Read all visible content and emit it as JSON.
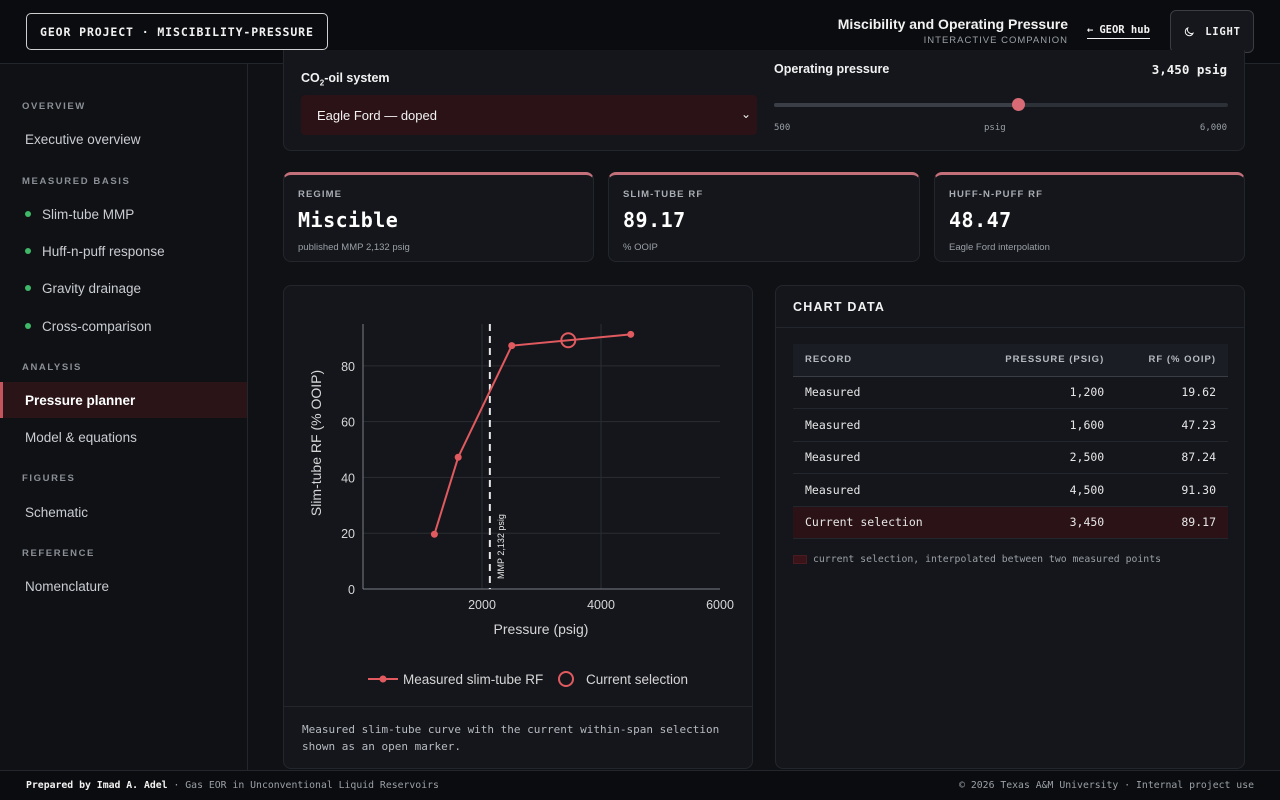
{
  "header": {
    "project_badge": "GEOR PROJECT · MISCIBILITY-PRESSURE",
    "title": "Miscibility and Operating Pressure",
    "subtitle": "INTERACTIVE COMPANION",
    "hub_link": "GEOR hub",
    "theme_toggle": "LIGHT"
  },
  "sidebar": {
    "sections": [
      {
        "title": "OVERVIEW",
        "items": [
          {
            "label": "Executive overview",
            "dot": false,
            "active": false
          }
        ]
      },
      {
        "title": "MEASURED BASIS",
        "items": [
          {
            "label": "Slim-tube MMP",
            "dot": true,
            "active": false
          },
          {
            "label": "Huff-n-puff response",
            "dot": true,
            "active": false
          },
          {
            "label": "Gravity drainage",
            "dot": true,
            "active": false
          },
          {
            "label": "Cross-comparison",
            "dot": true,
            "active": false
          }
        ]
      },
      {
        "title": "ANALYSIS",
        "items": [
          {
            "label": "Pressure planner",
            "dot": false,
            "active": true
          },
          {
            "label": "Model & equations",
            "dot": false,
            "active": false
          }
        ]
      },
      {
        "title": "FIGURES",
        "items": [
          {
            "label": "Schematic",
            "dot": false,
            "active": false
          }
        ]
      },
      {
        "title": "REFERENCE",
        "items": [
          {
            "label": "Nomenclature",
            "dot": false,
            "active": false
          }
        ]
      }
    ]
  },
  "controls": {
    "system_label_pre": "CO",
    "system_label_sub": "2",
    "system_label_post": "-oil system",
    "system_value": "Eagle Ford — doped",
    "pressure_label": "Operating pressure",
    "pressure_value": "3,450 psig",
    "pressure_current": 3450,
    "pressure_min": 500,
    "pressure_max": 6000,
    "tick_min": "500",
    "tick_unit": "psig",
    "tick_max": "6,000"
  },
  "cards": [
    {
      "label": "REGIME",
      "value": "Miscible",
      "note": "published MMP 2,132 psig"
    },
    {
      "label": "SLIM-TUBE RF",
      "value": "89.17",
      "note": "% OOIP"
    },
    {
      "label": "HUFF-N-PUFF RF",
      "value": "48.47",
      "note": "Eagle Ford interpolation"
    }
  ],
  "chart_data": {
    "type": "line",
    "title": "",
    "xlabel": "Pressure (psig)",
    "ylabel": "Slim-tube RF (% OOIP)",
    "xlim": [
      0,
      6000
    ],
    "ylim": [
      0,
      95
    ],
    "xticks": [
      2000,
      4000,
      6000
    ],
    "yticks": [
      0,
      20,
      40,
      60,
      80
    ],
    "grid": true,
    "legend_position": "bottom",
    "series": [
      {
        "name": "Measured slim-tube RF",
        "color": "#e05a5f",
        "x": [
          1200,
          1600,
          2500,
          4500
        ],
        "y": [
          19.62,
          47.23,
          87.24,
          91.3
        ]
      },
      {
        "name": "Current selection",
        "color": "#e05a5f",
        "x": [
          3450
        ],
        "y": [
          89.17
        ],
        "marker": "open-circle"
      }
    ],
    "annotations": [
      {
        "x": 2132,
        "text": "MMP 2,132 psig",
        "style": "dashed-vertical"
      }
    ],
    "caption": "Measured slim-tube curve with the current within-span selection shown as an open marker."
  },
  "data_table": {
    "title": "CHART DATA",
    "headers": [
      "RECORD",
      "PRESSURE (PSIG)",
      "RF (% OOIP)"
    ],
    "rows": [
      [
        "Measured",
        "1,200",
        "19.62"
      ],
      [
        "Measured",
        "1,600",
        "47.23"
      ],
      [
        "Measured",
        "2,500",
        "87.24"
      ],
      [
        "Measured",
        "4,500",
        "91.30"
      ],
      [
        "Current selection",
        "3,450",
        "89.17"
      ]
    ],
    "selected_row": 4,
    "legend_note": "current selection, interpolated between two measured points"
  },
  "footer": {
    "author_prefix": "Prepared by",
    "author": "Imad A. Adel",
    "tagline": "· Gas EOR in Unconventional Liquid Reservoirs",
    "copyright": "© 2026 Texas A&M University · Internal project use"
  },
  "colors": {
    "accent": "#c4555f",
    "series": "#e05a5f",
    "dot": "#3fb868"
  }
}
